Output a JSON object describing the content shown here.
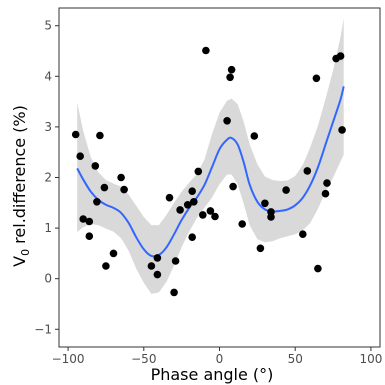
{
  "chart_data": {
    "type": "scatter",
    "xlabel": "Phase angle (°)",
    "ylabel_main": "V",
    "ylabel_sub": "0",
    "ylabel_rest": " rel.difference (%)",
    "xlim": [
      -106,
      106
    ],
    "ylim": [
      -1.35,
      5.35
    ],
    "x_ticks": [
      -100,
      -50,
      0,
      50,
      100
    ],
    "x_tick_labels": [
      "−100",
      "−50",
      "0",
      "50",
      "100"
    ],
    "y_ticks": [
      -1,
      0,
      1,
      2,
      3,
      4,
      5
    ],
    "y_tick_labels": [
      "−1",
      "0",
      "1",
      "2",
      "3",
      "4",
      "5"
    ],
    "grid": false,
    "colors": {
      "points": "#000000",
      "smooth_line": "#3366ff",
      "confidence_band": "#d9d9d9",
      "axis": "#333333"
    },
    "points": [
      {
        "x": -95,
        "y": 2.85
      },
      {
        "x": -92,
        "y": 2.42
      },
      {
        "x": -90,
        "y": 1.18
      },
      {
        "x": -86,
        "y": 1.13
      },
      {
        "x": -86,
        "y": 0.84
      },
      {
        "x": -82,
        "y": 2.23
      },
      {
        "x": -81,
        "y": 1.52
      },
      {
        "x": -79,
        "y": 2.83
      },
      {
        "x": -76,
        "y": 1.8
      },
      {
        "x": -75,
        "y": 0.25
      },
      {
        "x": -70,
        "y": 0.5
      },
      {
        "x": -65,
        "y": 2.0
      },
      {
        "x": -63,
        "y": 1.76
      },
      {
        "x": -45,
        "y": 0.25
      },
      {
        "x": -41,
        "y": 0.08
      },
      {
        "x": -41,
        "y": 0.41
      },
      {
        "x": -33,
        "y": 1.6
      },
      {
        "x": -30,
        "y": -0.27
      },
      {
        "x": -29,
        "y": 0.35
      },
      {
        "x": -26,
        "y": 1.36
      },
      {
        "x": -21,
        "y": 1.46
      },
      {
        "x": -18,
        "y": 1.73
      },
      {
        "x": -18,
        "y": 0.82
      },
      {
        "x": -17,
        "y": 1.52
      },
      {
        "x": -14,
        "y": 2.12
      },
      {
        "x": -11,
        "y": 1.26
      },
      {
        "x": -9,
        "y": 4.51
      },
      {
        "x": -6,
        "y": 1.34
      },
      {
        "x": -3,
        "y": 1.23
      },
      {
        "x": 5,
        "y": 3.12
      },
      {
        "x": 7,
        "y": 3.98
      },
      {
        "x": 8,
        "y": 4.13
      },
      {
        "x": 9,
        "y": 1.82
      },
      {
        "x": 15,
        "y": 1.08
      },
      {
        "x": 23,
        "y": 2.82
      },
      {
        "x": 27,
        "y": 0.6
      },
      {
        "x": 30,
        "y": 1.49
      },
      {
        "x": 34,
        "y": 1.32
      },
      {
        "x": 34,
        "y": 1.22
      },
      {
        "x": 44,
        "y": 1.75
      },
      {
        "x": 55,
        "y": 0.88
      },
      {
        "x": 58,
        "y": 2.13
      },
      {
        "x": 64,
        "y": 3.96
      },
      {
        "x": 65,
        "y": 0.2
      },
      {
        "x": 70,
        "y": 1.68
      },
      {
        "x": 71,
        "y": 1.89
      },
      {
        "x": 77,
        "y": 4.35
      },
      {
        "x": 80,
        "y": 4.4
      },
      {
        "x": 81,
        "y": 2.94
      }
    ],
    "smooth_fit": [
      {
        "x": -94,
        "y": 2.18,
        "lo": 0.92,
        "hi": 3.48
      },
      {
        "x": -90,
        "y": 1.96,
        "lo": 1.02,
        "hi": 2.92
      },
      {
        "x": -85,
        "y": 1.72,
        "lo": 1.08,
        "hi": 2.4
      },
      {
        "x": -80,
        "y": 1.56,
        "lo": 1.06,
        "hi": 2.1
      },
      {
        "x": -75,
        "y": 1.46,
        "lo": 0.99,
        "hi": 1.95
      },
      {
        "x": -70,
        "y": 1.4,
        "lo": 0.93,
        "hi": 1.88
      },
      {
        "x": -65,
        "y": 1.3,
        "lo": 0.8,
        "hi": 1.82
      },
      {
        "x": -60,
        "y": 1.1,
        "lo": 0.55,
        "hi": 1.66
      },
      {
        "x": -55,
        "y": 0.82,
        "lo": 0.2,
        "hi": 1.44
      },
      {
        "x": -50,
        "y": 0.58,
        "lo": -0.08,
        "hi": 1.22
      },
      {
        "x": -45,
        "y": 0.45,
        "lo": -0.3,
        "hi": 1.06
      },
      {
        "x": -40,
        "y": 0.47,
        "lo": -0.27,
        "hi": 1.06
      },
      {
        "x": -35,
        "y": 0.62,
        "lo": -0.06,
        "hi": 1.26
      },
      {
        "x": -30,
        "y": 0.88,
        "lo": 0.26,
        "hi": 1.5
      },
      {
        "x": -25,
        "y": 1.16,
        "lo": 0.62,
        "hi": 1.72
      },
      {
        "x": -20,
        "y": 1.4,
        "lo": 0.93,
        "hi": 1.9
      },
      {
        "x": -15,
        "y": 1.6,
        "lo": 1.2,
        "hi": 2.07
      },
      {
        "x": -10,
        "y": 1.85,
        "lo": 1.4,
        "hi": 2.35
      },
      {
        "x": -5,
        "y": 2.2,
        "lo": 1.6,
        "hi": 2.85
      },
      {
        "x": 0,
        "y": 2.56,
        "lo": 1.87,
        "hi": 3.28
      },
      {
        "x": 5,
        "y": 2.75,
        "lo": 2.06,
        "hi": 3.52
      },
      {
        "x": 8,
        "y": 2.78,
        "lo": 2.06,
        "hi": 3.56
      },
      {
        "x": 12,
        "y": 2.65,
        "lo": 1.86,
        "hi": 3.45
      },
      {
        "x": 16,
        "y": 2.3,
        "lo": 1.48,
        "hi": 3.1
      },
      {
        "x": 20,
        "y": 1.85,
        "lo": 1.05,
        "hi": 2.65
      },
      {
        "x": 25,
        "y": 1.52,
        "lo": 0.78,
        "hi": 2.26
      },
      {
        "x": 30,
        "y": 1.37,
        "lo": 0.72,
        "hi": 2.02
      },
      {
        "x": 35,
        "y": 1.33,
        "lo": 0.74,
        "hi": 1.95
      },
      {
        "x": 40,
        "y": 1.34,
        "lo": 0.8,
        "hi": 1.93
      },
      {
        "x": 45,
        "y": 1.37,
        "lo": 0.84,
        "hi": 1.94
      },
      {
        "x": 50,
        "y": 1.45,
        "lo": 0.88,
        "hi": 2.03
      },
      {
        "x": 55,
        "y": 1.6,
        "lo": 0.96,
        "hi": 2.25
      },
      {
        "x": 60,
        "y": 1.85,
        "lo": 1.1,
        "hi": 2.6
      },
      {
        "x": 65,
        "y": 2.2,
        "lo": 1.38,
        "hi": 3.02
      },
      {
        "x": 70,
        "y": 2.65,
        "lo": 1.72,
        "hi": 3.55
      },
      {
        "x": 75,
        "y": 3.1,
        "lo": 2.0,
        "hi": 4.12
      },
      {
        "x": 80,
        "y": 3.55,
        "lo": 2.32,
        "hi": 4.78
      },
      {
        "x": 82,
        "y": 3.8,
        "lo": 2.45,
        "hi": 5.15
      }
    ]
  }
}
